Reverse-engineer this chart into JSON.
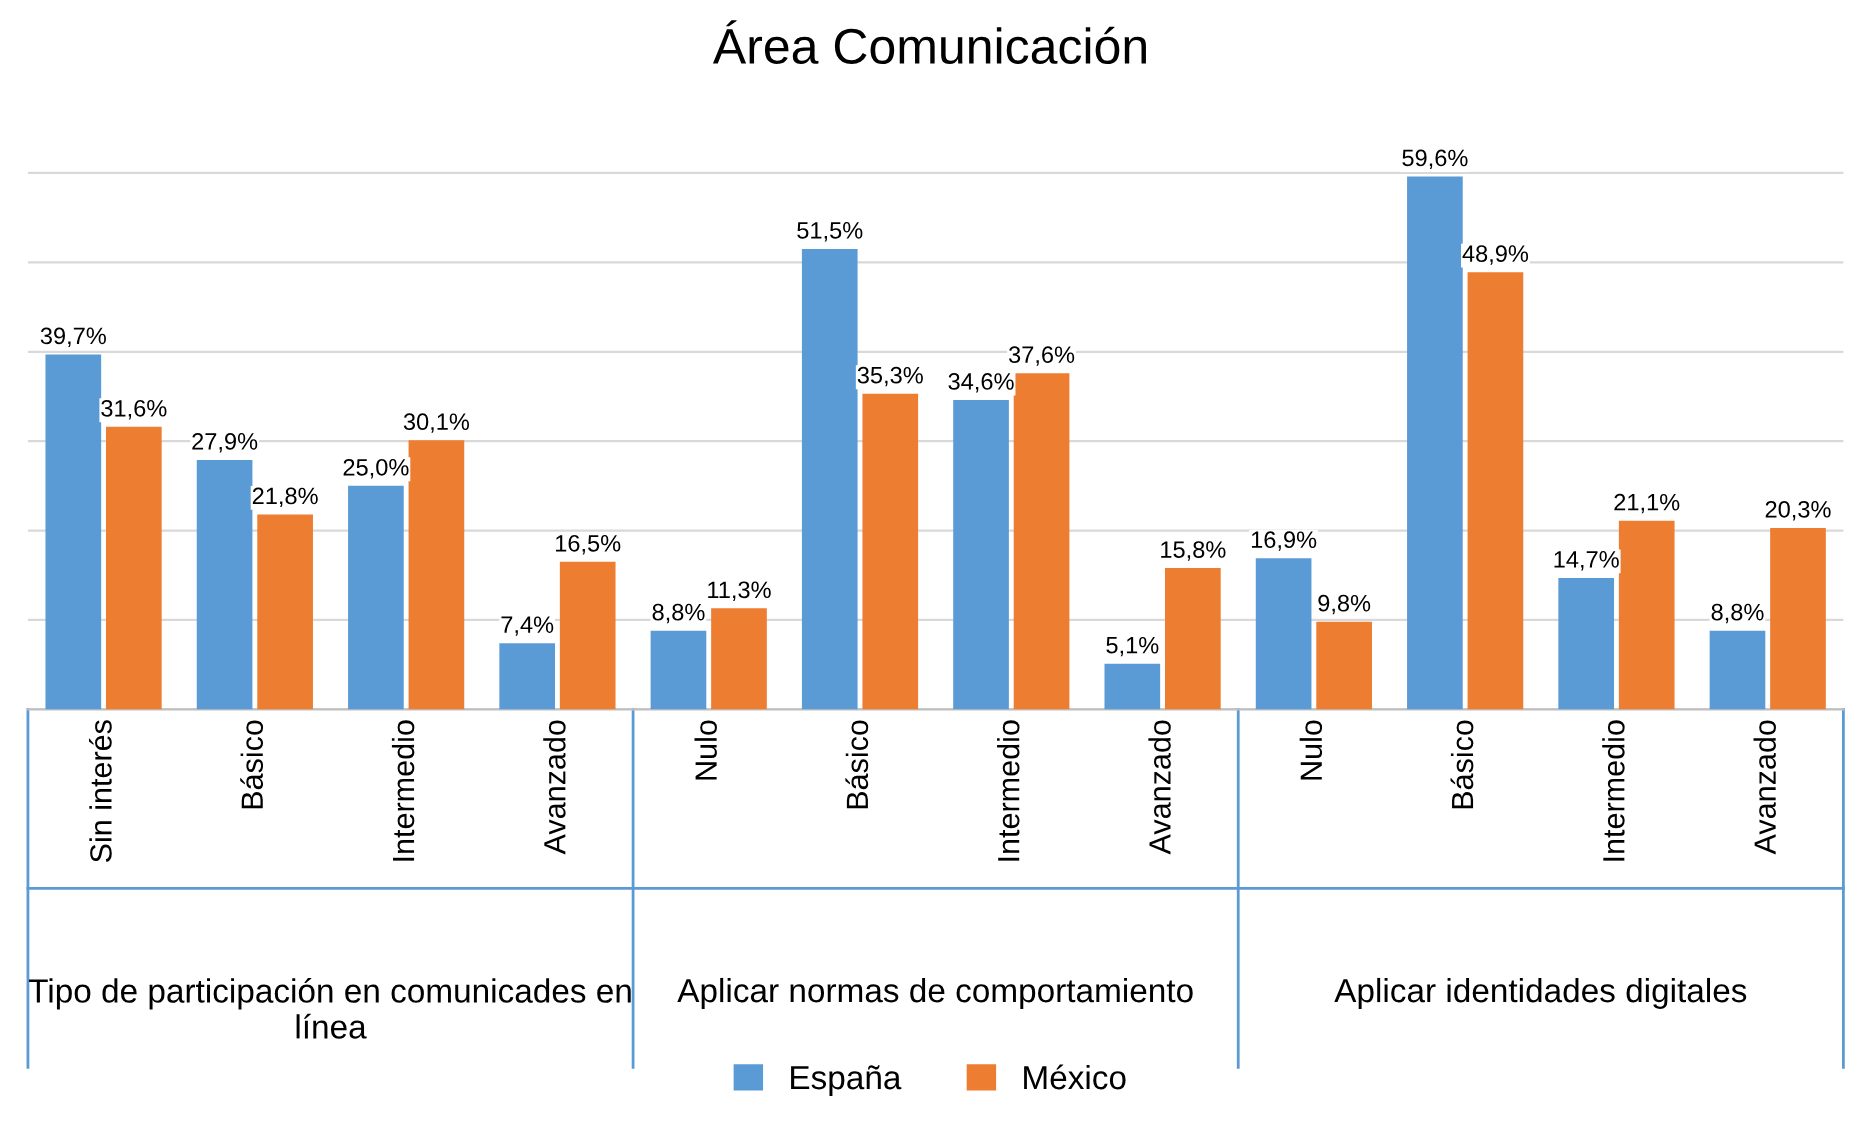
{
  "chart_data": {
    "type": "bar",
    "title": "Área Comunicación",
    "categories": [
      "Sin interés",
      "Básico",
      "Intermedio",
      "Avanzado",
      "Nulo",
      "Básico",
      "Intermedio",
      "Avanzado",
      "Nulo",
      "Básico",
      "Intermedio",
      "Avanzado"
    ],
    "series": [
      {
        "name": "España",
        "color": "#5b9bd5",
        "values": [
          39.7,
          27.9,
          25.0,
          7.4,
          8.8,
          51.5,
          34.6,
          5.1,
          16.9,
          59.6,
          14.7,
          8.8
        ],
        "value_labels": [
          "39,7%",
          "27,9%",
          "25,0%",
          "7,4%",
          "8,8%",
          "51,5%",
          "34,6%",
          "5,1%",
          "16,9%",
          "59,6%",
          "14,7%",
          "8,8%"
        ]
      },
      {
        "name": "México",
        "color": "#ed7d31",
        "values": [
          31.6,
          21.8,
          30.1,
          16.5,
          11.3,
          35.3,
          37.6,
          15.8,
          9.8,
          48.9,
          21.1,
          20.3
        ],
        "value_labels": [
          "31,6%",
          "21,8%",
          "30,1%",
          "16,5%",
          "11,3%",
          "35,3%",
          "37,6%",
          "15,8%",
          "9,8%",
          "48,9%",
          "21,1%",
          "20,3%"
        ]
      }
    ],
    "annotations": [
      "Tipo de participación en comunicades en línea",
      "Aplicar normas de comportamiento",
      "Aplicar identidades digitales"
    ],
    "grid": "y",
    "tick_labels": "x",
    "legend": "bottom"
  }
}
